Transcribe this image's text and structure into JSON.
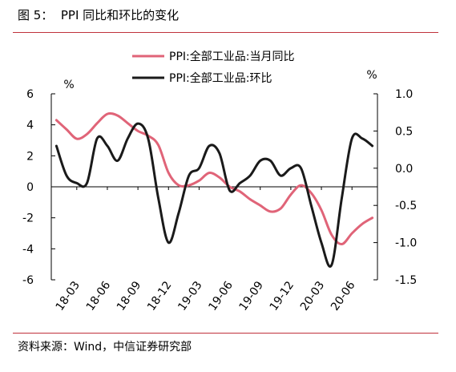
{
  "figure": {
    "title": "图 5：  PPI 同比和环比的变化",
    "source": "资料来源：Wind，中信证券研究部"
  },
  "colors": {
    "rule": "#c0323c",
    "series_yoy": "#e06478",
    "series_mom": "#1a1a1a"
  },
  "chart_data": {
    "type": "line",
    "x": [
      "18-01",
      "18-02",
      "18-03",
      "18-04",
      "18-05",
      "18-06",
      "18-07",
      "18-08",
      "18-09",
      "18-10",
      "18-11",
      "18-12",
      "19-01",
      "19-02",
      "19-03",
      "19-04",
      "19-05",
      "19-06",
      "19-07",
      "19-08",
      "19-09",
      "19-10",
      "19-11",
      "19-12",
      "20-01",
      "20-02",
      "20-03",
      "20-04",
      "20-05",
      "20-06",
      "20-07",
      "20-08"
    ],
    "xticks": [
      "18-03",
      "18-06",
      "18-09",
      "18-12",
      "19-03",
      "19-06",
      "19-09",
      "19-12",
      "20-03",
      "20-06"
    ],
    "left_axis": {
      "unit": "%",
      "ylim": [
        -6,
        6
      ],
      "ticks": [
        6,
        4,
        2,
        0,
        -2,
        -4,
        -6
      ]
    },
    "right_axis": {
      "unit": "%",
      "ylim": [
        -1.5,
        1.0
      ],
      "ticks": [
        "1.0",
        "0.5",
        "0.0",
        "-0.5",
        "-1.0",
        "-1.5"
      ]
    },
    "legend_position": "top",
    "series": [
      {
        "name": "PPI:全部工业品:当月同比",
        "axis": "left",
        "color": "#e06478",
        "values": [
          4.3,
          3.7,
          3.1,
          3.4,
          4.1,
          4.7,
          4.6,
          4.1,
          3.6,
          3.3,
          2.7,
          0.9,
          0.1,
          0.1,
          0.4,
          0.9,
          0.6,
          0.0,
          -0.3,
          -0.8,
          -1.2,
          -1.6,
          -1.4,
          -0.5,
          0.1,
          -0.4,
          -1.5,
          -3.1,
          -3.7,
          -3.0,
          -2.4,
          -2.0
        ]
      },
      {
        "name": "PPI:全部工业品:环比",
        "axis": "right",
        "color": "#1a1a1a",
        "values": [
          0.3,
          -0.1,
          -0.2,
          -0.2,
          0.4,
          0.3,
          0.1,
          0.4,
          0.6,
          0.4,
          -0.4,
          -1.0,
          -0.6,
          -0.1,
          0.0,
          0.3,
          0.2,
          -0.3,
          -0.2,
          -0.1,
          0.1,
          0.1,
          -0.1,
          0.0,
          0.0,
          -0.5,
          -1.0,
          -1.3,
          -0.4,
          0.4,
          0.4,
          0.3
        ]
      }
    ]
  }
}
